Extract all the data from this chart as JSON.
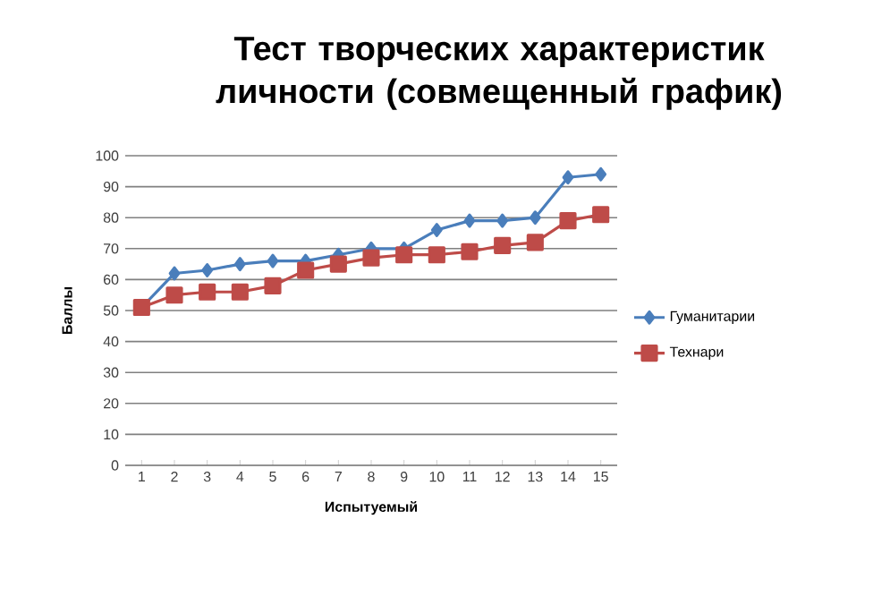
{
  "chart_data": {
    "type": "line",
    "title": "Тест творческих характеристик личности (совмещенный график)",
    "xlabel": "Испытуемый",
    "ylabel": "Баллы",
    "categories": [
      "1",
      "2",
      "3",
      "4",
      "5",
      "6",
      "7",
      "8",
      "9",
      "10",
      "11",
      "12",
      "13",
      "14",
      "15"
    ],
    "series": [
      {
        "name": "Гуманитарии",
        "color": "#4a7ebb",
        "marker": "diamond",
        "values": [
          51,
          62,
          63,
          65,
          66,
          66,
          68,
          70,
          70,
          76,
          79,
          79,
          80,
          93,
          94
        ]
      },
      {
        "name": "Технари",
        "color": "#be4b48",
        "marker": "square",
        "values": [
          51,
          55,
          56,
          56,
          58,
          63,
          65,
          67,
          68,
          68,
          69,
          71,
          72,
          79,
          81
        ]
      }
    ],
    "ylim": [
      0,
      100
    ],
    "yticks": [
      0,
      10,
      20,
      30,
      40,
      50,
      60,
      70,
      80,
      90,
      100
    ],
    "grid": "y",
    "legend": "right"
  }
}
